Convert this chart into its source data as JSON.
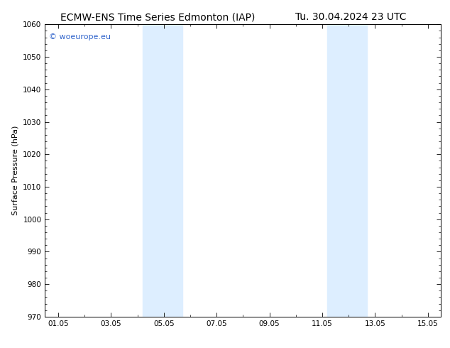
{
  "title_left": "ECMW-ENS Time Series Edmonton (IAP)",
  "title_right": "Tu. 30.04.2024 23 UTC",
  "ylabel": "Surface Pressure (hPa)",
  "ylim": [
    970,
    1060
  ],
  "yticks_major": [
    970,
    980,
    990,
    1000,
    1010,
    1020,
    1030,
    1040,
    1050,
    1060
  ],
  "xlim_start": 0.5,
  "xlim_end": 15.5,
  "xtick_positions": [
    1,
    3,
    5,
    7,
    9,
    11,
    13,
    15
  ],
  "xtick_labels": [
    "01.05",
    "03.05",
    "05.05",
    "07.05",
    "09.05",
    "11.05",
    "13.05",
    "15.05"
  ],
  "shaded_regions": [
    {
      "xmin": 4.2,
      "xmax": 5.7
    },
    {
      "xmin": 11.2,
      "xmax": 12.7
    }
  ],
  "shade_color": "#ddeeff",
  "watermark": "© woeurope.eu",
  "watermark_color": "#3366cc",
  "background_color": "#ffffff",
  "title_fontsize": 10,
  "axis_fontsize": 8,
  "tick_fontsize": 7.5
}
